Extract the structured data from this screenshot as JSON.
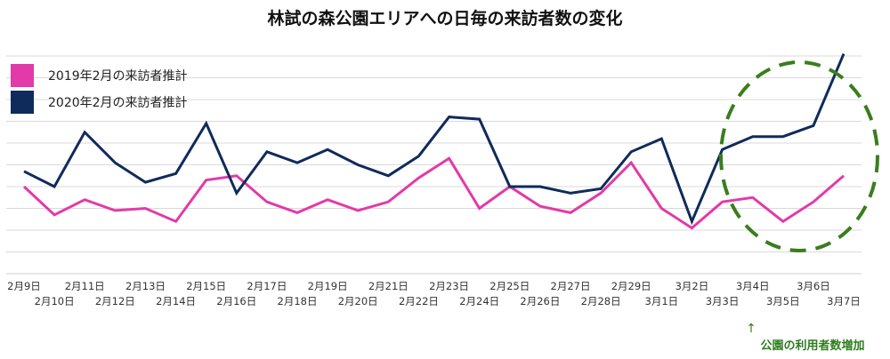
{
  "chart_data": {
    "type": "line",
    "title": "林試の森公園エリアへの日毎の来訪者数の変化",
    "x_labels_top": [
      "2月9日",
      "2月11日",
      "2月13日",
      "2月15日",
      "2月17日",
      "2月19日",
      "2月21日",
      "2月23日",
      "2月25日",
      "2月27日",
      "2月29日",
      "3月2日",
      "3月4日",
      "3月6日"
    ],
    "x_labels_bottom": [
      "2月10日",
      "2月12日",
      "2月14日",
      "2月16日",
      "2月18日",
      "2月20日",
      "2月22日",
      "2月24日",
      "2月26日",
      "2月28日",
      "3月1日",
      "3月3日",
      "3月5日",
      "3月7日"
    ],
    "ylim": [
      0,
      10
    ],
    "grid": true,
    "legend_position": "top-left",
    "series": [
      {
        "name": "2019年2月の来訪者推計",
        "color": "#e23aa8",
        "values": [
          4.0,
          2.7,
          3.4,
          2.9,
          3.0,
          2.4,
          4.3,
          4.5,
          3.3,
          2.8,
          3.4,
          2.9,
          3.3,
          4.4,
          5.3,
          3.0,
          4.0,
          3.1,
          2.8,
          3.7,
          5.1,
          3.0,
          2.1,
          3.3,
          3.5,
          2.4,
          3.3,
          4.5
        ]
      },
      {
        "name": "2020年2月の来訪者推計",
        "color": "#0f2b5b",
        "values": [
          4.7,
          4.0,
          6.5,
          5.1,
          4.2,
          4.6,
          6.9,
          3.7,
          5.6,
          5.1,
          5.7,
          5.0,
          4.5,
          5.4,
          7.2,
          7.1,
          4.0,
          4.0,
          3.7,
          3.9,
          5.6,
          6.2,
          2.4,
          5.7,
          6.3,
          6.3,
          6.8,
          10.1
        ]
      }
    ],
    "annotation": {
      "text": "公園の利用者数増加",
      "color": "#2e7d1e"
    }
  }
}
